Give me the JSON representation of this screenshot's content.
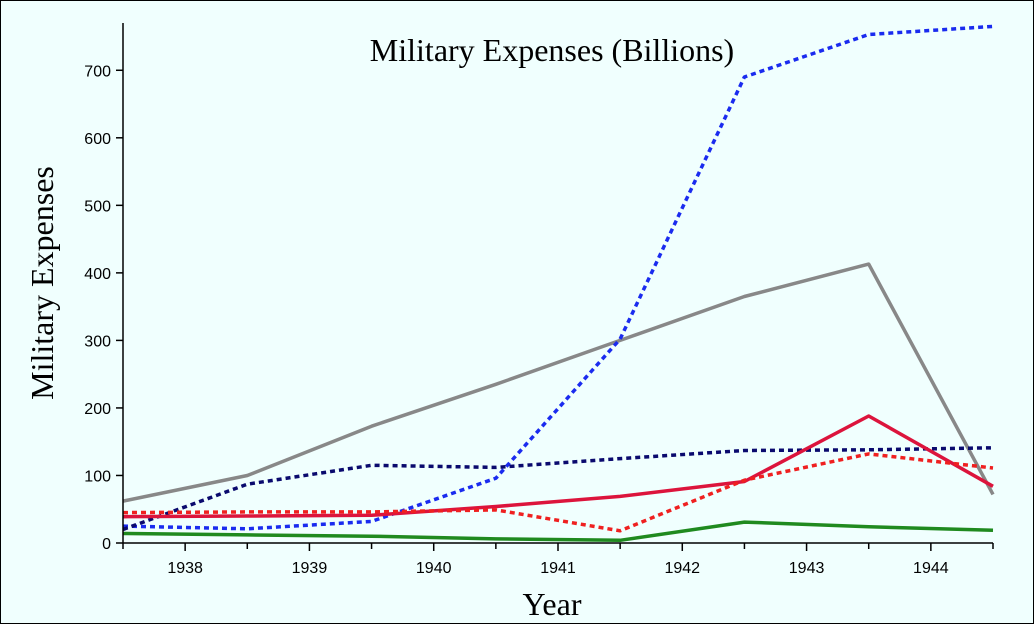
{
  "chart_data": {
    "type": "line",
    "title": "Military Expenses (Billions)",
    "xlabel": "Year",
    "ylabel": "Military Expenses",
    "x": [
      1938,
      1939,
      1940,
      1941,
      1942,
      1943,
      1944
    ],
    "x_tick_labels": [
      "1938",
      "1939",
      "1940",
      "1941",
      "1942",
      "1943",
      "1944"
    ],
    "y_ticks": [
      0,
      100,
      200,
      300,
      400,
      500,
      600,
      700
    ],
    "y_tick_labels": [
      "0",
      "100",
      "200",
      "300",
      "400",
      "500",
      "600",
      "700"
    ],
    "ylim": [
      0,
      770
    ],
    "grid": false,
    "legend": "none",
    "series": [
      {
        "color": "#888888",
        "dash": "solid",
        "points": [
          [
            1937.5,
            62
          ],
          [
            1938.5,
            100
          ],
          [
            1939.5,
            173
          ],
          [
            1940.5,
            235
          ],
          [
            1941.5,
            300
          ],
          [
            1942.5,
            365
          ],
          [
            1943.5,
            413
          ],
          [
            1944.5,
            72
          ]
        ]
      },
      {
        "color": "#1a2bef",
        "dash": "dotted",
        "points": [
          [
            1937.5,
            25
          ],
          [
            1938.5,
            21
          ],
          [
            1939.5,
            32
          ],
          [
            1940.5,
            96
          ],
          [
            1941.5,
            302
          ],
          [
            1942.5,
            690
          ],
          [
            1943.5,
            753
          ],
          [
            1944.5,
            765
          ]
        ]
      },
      {
        "color": "#0a0a6e",
        "dash": "dotted",
        "points": [
          [
            1937.5,
            20
          ],
          [
            1938.5,
            87
          ],
          [
            1939.5,
            115
          ],
          [
            1940.5,
            112
          ],
          [
            1941.5,
            125
          ],
          [
            1942.5,
            137
          ],
          [
            1943.5,
            138
          ],
          [
            1944.5,
            141
          ]
        ]
      },
      {
        "color": "#dc143c",
        "dash": "solid",
        "points": [
          [
            1937.5,
            39
          ],
          [
            1938.5,
            40
          ],
          [
            1939.5,
            41
          ],
          [
            1940.5,
            54
          ],
          [
            1941.5,
            69
          ],
          [
            1942.5,
            91
          ],
          [
            1943.5,
            188
          ],
          [
            1944.5,
            84
          ]
        ]
      },
      {
        "color": "#ef2020",
        "dash": "dotted",
        "points": [
          [
            1937.5,
            45
          ],
          [
            1938.5,
            46
          ],
          [
            1939.5,
            46
          ],
          [
            1940.5,
            49
          ],
          [
            1941.5,
            18
          ],
          [
            1942.5,
            93
          ],
          [
            1943.5,
            132
          ],
          [
            1944.5,
            111
          ]
        ]
      },
      {
        "color": "#1f8a1f",
        "dash": "solid",
        "points": [
          [
            1937.5,
            14
          ],
          [
            1938.5,
            12
          ],
          [
            1939.5,
            10
          ],
          [
            1940.5,
            6
          ],
          [
            1941.5,
            4
          ],
          [
            1942.5,
            31
          ],
          [
            1943.5,
            24
          ],
          [
            1944.5,
            19
          ]
        ]
      }
    ]
  }
}
